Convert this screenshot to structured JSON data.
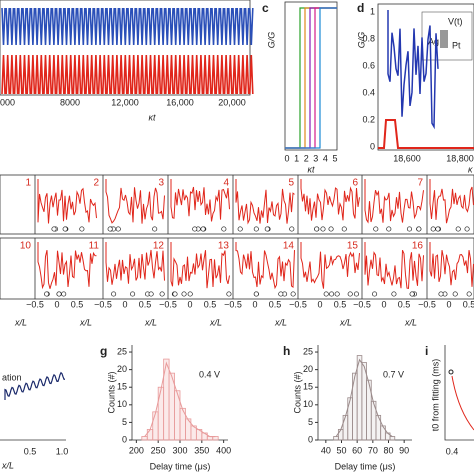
{
  "panel_a": {
    "xticks": [
      "000",
      "8000",
      "12,000",
      "16,000",
      "20,000"
    ],
    "xlabel": "κt"
  },
  "panel_c": {
    "letter": "c",
    "ylabel": "G/G",
    "ylabel_sub": "max",
    "xticks": [
      "0",
      "1",
      "2",
      "3",
      "4",
      "5"
    ],
    "xlabel": "κt"
  },
  "panel_d": {
    "letter": "d",
    "ylabel": "G/G",
    "ylabel_sub": "max",
    "yticks": [
      "1",
      "0.8",
      "0.6",
      "0.4",
      "0.2",
      "0"
    ],
    "xticks": [
      "18,600",
      "18,800"
    ],
    "xlabel": "κ",
    "inset": [
      "V(t)",
      "Ag",
      "Pt"
    ]
  },
  "panel_e": {
    "numbers_top": [
      "1",
      "2",
      "3",
      "4",
      "5",
      "6",
      "7"
    ],
    "numbers_bottom": [
      "10",
      "11",
      "12",
      "13",
      "14",
      "15",
      "16"
    ],
    "xticks": [
      "−0.5",
      "0",
      "0.5"
    ],
    "xlabel": "x/L"
  },
  "panel_f": {
    "legend": "ation",
    "xticks": [
      "0.5",
      "1.0"
    ],
    "xlabel": "x/L"
  },
  "panel_g": {
    "letter": "g",
    "ylabel": "Counts (#)",
    "xlabel": "Delay time (μs)",
    "annotation": "0.4 V",
    "bins": [
      212.5,
      225,
      237.5,
      250,
      262.5,
      275,
      287.5,
      300,
      312.5,
      325,
      337.5,
      350,
      362.5,
      375,
      387.5
    ],
    "counts": [
      1,
      3,
      8,
      15,
      23,
      19,
      14,
      9,
      6,
      4,
      3,
      2,
      1,
      1
    ],
    "xlim": [
      190,
      410
    ],
    "ylim": [
      0,
      27
    ],
    "xticks": [
      200,
      250,
      300,
      350,
      400
    ],
    "yticks": [
      0,
      5,
      10,
      15,
      20,
      25
    ]
  },
  "panel_h": {
    "letter": "h",
    "ylabel": "Counts (#)",
    "xlabel": "Delay time (μs)",
    "annotation": "0.7 V",
    "bins": [
      45,
      48,
      51,
      54,
      57,
      60,
      63,
      66,
      69,
      72,
      75,
      78,
      81,
      84
    ],
    "counts": [
      1,
      3,
      7,
      12,
      19,
      24,
      22,
      17,
      11,
      7,
      4,
      2,
      1
    ],
    "xlim": [
      35,
      95
    ],
    "ylim": [
      0,
      27
    ],
    "xticks": [
      40,
      50,
      60,
      70,
      80,
      90
    ],
    "yticks": [
      0,
      5,
      10,
      15,
      20,
      25
    ]
  },
  "panel_i": {
    "letter": "i",
    "ylabel": "t0 from fitting (ms)",
    "xticks": [
      "0.4"
    ]
  }
}
